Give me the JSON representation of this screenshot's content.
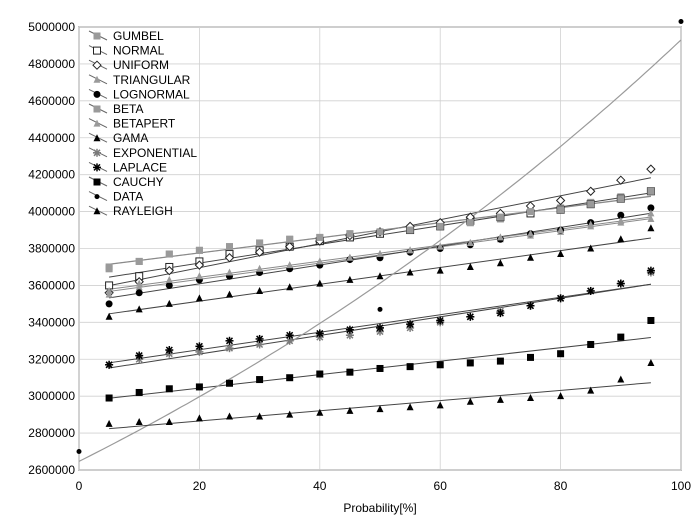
{
  "chart_data": {
    "type": "scatter",
    "title": "",
    "xlabel": "Probability[%]",
    "ylabel": "",
    "xlim": [
      0,
      100
    ],
    "ylim": [
      2600000,
      5000000
    ],
    "xticks": [
      0,
      20,
      40,
      60,
      80,
      100
    ],
    "yticks": [
      2600000,
      2800000,
      3000000,
      3200000,
      3400000,
      3600000,
      3800000,
      4000000,
      4200000,
      4400000,
      4600000,
      4800000,
      5000000
    ],
    "grid": true,
    "legend_position": "top-left",
    "x": [
      5,
      10,
      15,
      20,
      25,
      30,
      35,
      40,
      45,
      50,
      55,
      60,
      65,
      70,
      75,
      80,
      85,
      90,
      95
    ],
    "series": [
      {
        "name": "GUMBEL",
        "marker": "square-gray",
        "color": "#9a9a9a",
        "fit": "line",
        "values": [
          3700000,
          3730000,
          3770000,
          3790000,
          3810000,
          3830000,
          3850000,
          3860000,
          3880000,
          3890000,
          3910000,
          3920000,
          3940000,
          3960000,
          3990000,
          4020000,
          4050000,
          4080000,
          4110000
        ]
      },
      {
        "name": "NORMAL",
        "marker": "square-open",
        "color": "#222222",
        "fit": "line",
        "values": [
          3600000,
          3650000,
          3700000,
          3730000,
          3770000,
          3790000,
          3810000,
          3840000,
          3860000,
          3880000,
          3900000,
          3920000,
          3950000,
          3970000,
          3990000,
          4010000,
          4040000,
          4070000,
          4110000
        ]
      },
      {
        "name": "UNIFORM",
        "marker": "diamond-open",
        "color": "#222222",
        "fit": "line",
        "values": [
          3560000,
          3620000,
          3680000,
          3710000,
          3750000,
          3780000,
          3810000,
          3840000,
          3870000,
          3890000,
          3920000,
          3940000,
          3970000,
          3990000,
          4030000,
          4060000,
          4110000,
          4170000,
          4230000
        ]
      },
      {
        "name": "TRIANGULAR",
        "marker": "tri-gray",
        "color": "#9a9a9a",
        "fit": "line",
        "values": [
          3550000,
          3590000,
          3610000,
          3640000,
          3660000,
          3680000,
          3700000,
          3720000,
          3750000,
          3770000,
          3790000,
          3810000,
          3830000,
          3850000,
          3870000,
          3890000,
          3920000,
          3940000,
          3960000
        ]
      },
      {
        "name": "LOGNORMAL",
        "marker": "dot",
        "color": "#000000",
        "fit": "line",
        "values": [
          3500000,
          3560000,
          3600000,
          3630000,
          3650000,
          3670000,
          3690000,
          3710000,
          3740000,
          3750000,
          3780000,
          3800000,
          3820000,
          3850000,
          3880000,
          3900000,
          3940000,
          3980000,
          4020000
        ]
      },
      {
        "name": "BETA",
        "marker": "square-gray",
        "color": "#9a9a9a",
        "fit": "line",
        "values": [
          3690000,
          3730000,
          3770000,
          3790000,
          3810000,
          3830000,
          3850000,
          3860000,
          3880000,
          3890000,
          3900000,
          3920000,
          3940000,
          3970000,
          4000000,
          4010000,
          4040000,
          4070000,
          4110000
        ]
      },
      {
        "name": "BETAPERT",
        "marker": "tri-gray",
        "color": "#9a9a9a",
        "fit": "line",
        "values": [
          3570000,
          3610000,
          3630000,
          3650000,
          3670000,
          3690000,
          3710000,
          3730000,
          3750000,
          3770000,
          3790000,
          3810000,
          3830000,
          3860000,
          3880000,
          3900000,
          3930000,
          3950000,
          3990000
        ]
      },
      {
        "name": "GAMA",
        "marker": "tri",
        "color": "#000000",
        "fit": "line",
        "values": [
          3430000,
          3470000,
          3500000,
          3530000,
          3550000,
          3570000,
          3590000,
          3610000,
          3630000,
          3650000,
          3670000,
          3680000,
          3700000,
          3720000,
          3750000,
          3770000,
          3800000,
          3850000,
          3910000
        ]
      },
      {
        "name": "EXPONENTIAL",
        "marker": "asterisk-gray",
        "color": "#7a7a7a",
        "fit": "line",
        "values": [
          3170000,
          3200000,
          3230000,
          3240000,
          3260000,
          3280000,
          3300000,
          3320000,
          3330000,
          3350000,
          3370000,
          3400000,
          3430000,
          3460000,
          3490000,
          3530000,
          3570000,
          3610000,
          3670000
        ]
      },
      {
        "name": "LAPLACE",
        "marker": "asterisk",
        "color": "#000000",
        "fit": "line",
        "values": [
          3170000,
          3220000,
          3250000,
          3270000,
          3300000,
          3310000,
          3330000,
          3340000,
          3360000,
          3370000,
          3390000,
          3410000,
          3430000,
          3450000,
          3490000,
          3530000,
          3570000,
          3610000,
          3680000
        ]
      },
      {
        "name": "CAUCHY",
        "marker": "square",
        "color": "#000000",
        "fit": "line",
        "values": [
          2990000,
          3020000,
          3040000,
          3050000,
          3070000,
          3090000,
          3100000,
          3120000,
          3130000,
          3150000,
          3160000,
          3170000,
          3180000,
          3190000,
          3210000,
          3230000,
          3280000,
          3320000,
          3410000
        ]
      },
      {
        "name": "DATA",
        "marker": "dot-small",
        "color": "#000000",
        "fit": "curve",
        "values": [
          null,
          null,
          null,
          null,
          null,
          null,
          null,
          null,
          null,
          3470000,
          null,
          null,
          null,
          null,
          null,
          null,
          null,
          null,
          null
        ],
        "extra_points": [
          [
            0,
            2700000
          ],
          [
            100,
            5030000
          ]
        ]
      },
      {
        "name": "RAYLEIGH",
        "marker": "tri",
        "color": "#000000",
        "fit": "line",
        "values": [
          2850000,
          2860000,
          2860000,
          2880000,
          2890000,
          2890000,
          2900000,
          2910000,
          2920000,
          2930000,
          2940000,
          2950000,
          2970000,
          2980000,
          2990000,
          3000000,
          3030000,
          3090000,
          3180000
        ]
      }
    ]
  }
}
